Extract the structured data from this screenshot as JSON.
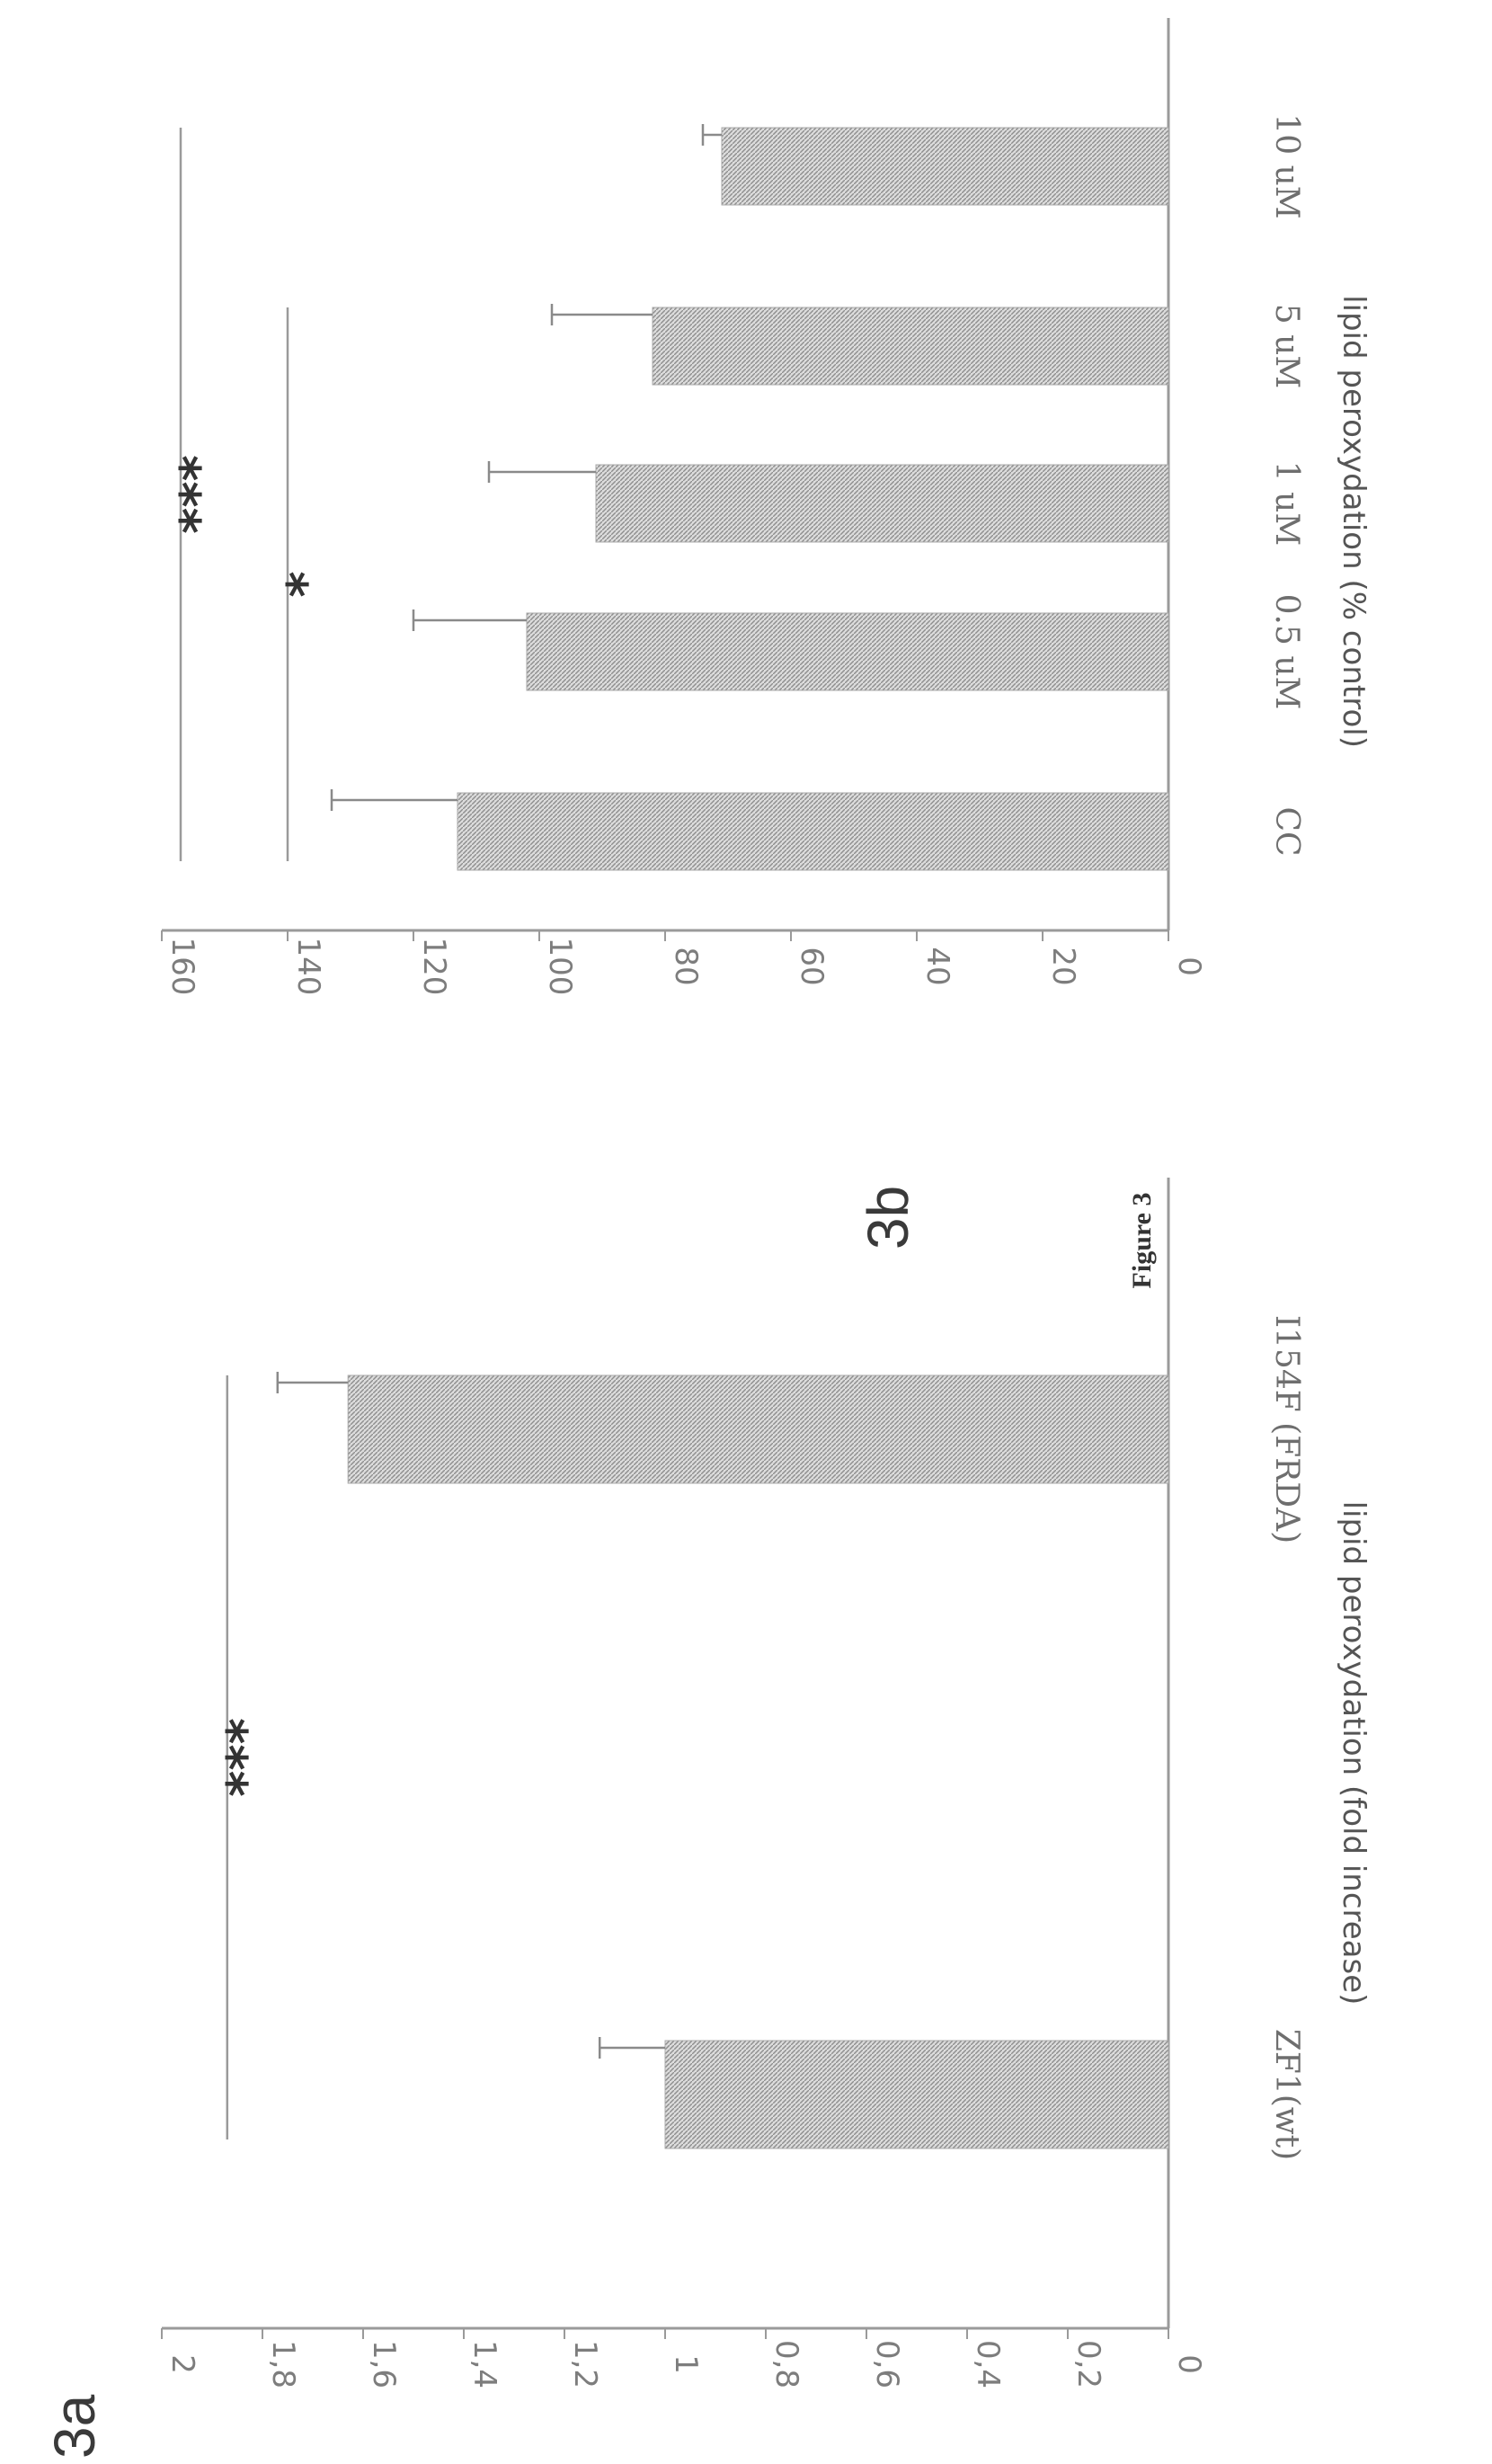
{
  "figure": {
    "caption": "Figure 3"
  },
  "chart_data": [
    {
      "panel": "3a",
      "type": "bar",
      "ylabel": "lipid peroxydation (fold increase)",
      "categories": [
        "ZF1(wt)",
        "I154F (FRDA)"
      ],
      "values": [
        1.0,
        1.63
      ],
      "errors": [
        0.13,
        0.14
      ],
      "ylim": [
        0,
        2
      ],
      "yticks": [
        0,
        0.2,
        0.4,
        0.6,
        0.8,
        1,
        1.2,
        1.4,
        1.6,
        1.8,
        2
      ],
      "ytick_labels": [
        "0",
        "0,2",
        "0,4",
        "0,6",
        "0,8",
        "1",
        "1,2",
        "1,4",
        "1,6",
        "1,8",
        "2"
      ],
      "significance": [
        {
          "from": 0,
          "to": 1,
          "level": 1.87,
          "label": "***"
        }
      ],
      "grid": false
    },
    {
      "panel": "3b",
      "type": "bar",
      "ylabel": "lipid peroxydation (% control)",
      "categories": [
        "CC",
        "0.5 uM",
        "1 uM",
        "5 uM",
        "10 uM"
      ],
      "values": [
        113,
        102,
        91,
        82,
        71
      ],
      "errors": [
        20,
        18,
        17,
        16,
        3
      ],
      "ylim": [
        0,
        160
      ],
      "yticks": [
        0,
        20,
        40,
        60,
        80,
        100,
        120,
        140,
        160
      ],
      "ytick_labels": [
        "0",
        "20",
        "40",
        "60",
        "80",
        "100",
        "120",
        "140",
        "160"
      ],
      "significance": [
        {
          "from": 0,
          "to": 3,
          "level": 140,
          "label": "*"
        },
        {
          "from": 0,
          "to": 4,
          "level": 157,
          "label": "***"
        }
      ],
      "grid": false
    }
  ]
}
